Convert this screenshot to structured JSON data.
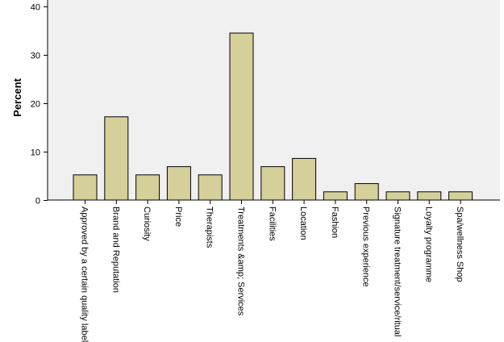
{
  "chart_data": {
    "type": "bar",
    "title": "",
    "xlabel": "",
    "ylabel": "Percent",
    "ylim": [
      0,
      40
    ],
    "yticks": [
      0,
      10,
      20,
      30,
      40
    ],
    "grid": false,
    "categories": [
      "Approved by a certain quality label",
      "Brand and Reputation",
      "Curiosity",
      "Price",
      "Therapists",
      "Treatments &amp; Services",
      "Facilities",
      "Location",
      "Fashion",
      "Previous experience",
      "Signature treatment/service/ritual",
      "Loyalty programme",
      "Spa/wellness Shop"
    ],
    "values": [
      5.2,
      17.2,
      5.2,
      6.9,
      5.2,
      34.5,
      6.9,
      8.6,
      1.7,
      3.4,
      1.7,
      1.7,
      1.7
    ],
    "colors": {
      "plot_background": "#f0f0f0",
      "bar_fill": "#d5cf9a",
      "bar_stroke": "#000000",
      "axis": "#000000"
    }
  }
}
